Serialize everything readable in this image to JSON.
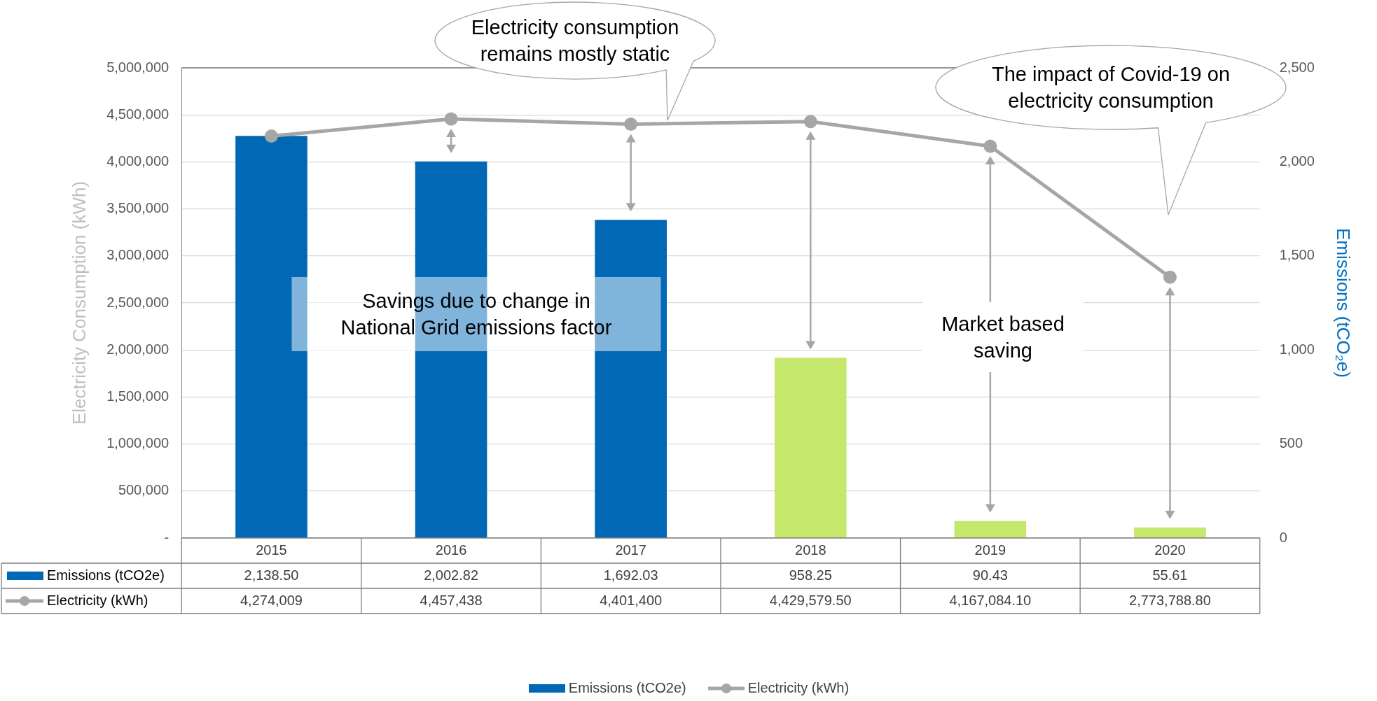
{
  "chart_data": {
    "type": "bar",
    "categories": [
      "2015",
      "2016",
      "2017",
      "2018",
      "2019",
      "2020"
    ],
    "series": [
      {
        "name": "Emissions (tCO2e)",
        "axis": "y2",
        "color": "#0068b5",
        "colors": [
          "#0068b5",
          "#0068b5",
          "#0068b5",
          "#c5e86c",
          "#c5e86c",
          "#c5e86c"
        ],
        "values": [
          2138.5,
          2002.82,
          1692.03,
          958.25,
          90.43,
          55.61
        ],
        "value_labels": [
          "2,138.50",
          "2,002.82",
          "1,692.03",
          "958.25",
          "90.43",
          "55.61"
        ]
      },
      {
        "name": "Electricity (kWh)",
        "type": "line",
        "axis": "y",
        "color": "#a6a6a6",
        "values": [
          4274009,
          4457438,
          4401400,
          4429579.5,
          4167084.1,
          2773788.8
        ],
        "value_labels": [
          "4,274,009",
          "4,457,438",
          "4,401,400",
          "4,429,579.50",
          "4,167,084.10",
          "2,773,788.80"
        ]
      }
    ],
    "ylabel": "Electricity Consumption (kWh)",
    "y2label": "Emissions (tCO₂e)",
    "ylim": [
      0,
      5000000
    ],
    "yticks": [
      {
        "value": 0,
        "label": "-"
      },
      {
        "value": 500000,
        "label": "500,000"
      },
      {
        "value": 1000000,
        "label": "1,000,000"
      },
      {
        "value": 1500000,
        "label": "1,500,000"
      },
      {
        "value": 2000000,
        "label": "2,000,000"
      },
      {
        "value": 2500000,
        "label": "2,500,000"
      },
      {
        "value": 3000000,
        "label": "3,000,000"
      },
      {
        "value": 3500000,
        "label": "3,500,000"
      },
      {
        "value": 4000000,
        "label": "4,000,000"
      },
      {
        "value": 4500000,
        "label": "4,500,000"
      },
      {
        "value": 5000000,
        "label": "5,000,000"
      }
    ],
    "y2lim": [
      0,
      2500
    ],
    "y2ticks": [
      0,
      500,
      {
        "value": 1000,
        "label": "1,000"
      },
      {
        "value": 1500,
        "label": "1,500"
      },
      {
        "value": 2000,
        "label": "2,000"
      },
      {
        "value": 2500,
        "label": "2,500"
      }
    ],
    "grid": "y",
    "legend": "bottom",
    "marker": "circle",
    "line_style": "solid",
    "annotations": [
      "Electricity consumption remains mostly static",
      "The impact of Covid-19 on electricity consumption",
      "Savings due to change in National Grid emissions factor",
      "Market based saving"
    ]
  }
}
